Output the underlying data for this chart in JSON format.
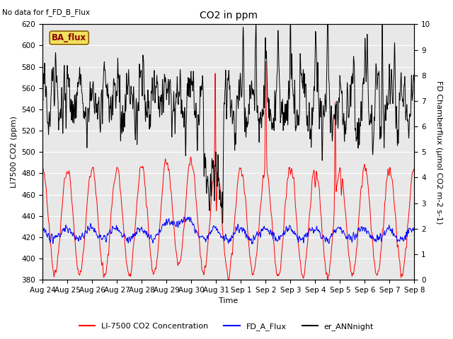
{
  "title": "CO2 in ppm",
  "no_data_text": "No data for f_FD_B_Flux",
  "ba_flux_label": "BA_flux",
  "ylabel_left": "LI7500 CO2 (ppm)",
  "ylabel_right": "FD Chamberflux (μmol CO2 m-2 s-1)",
  "xlabel": "Time",
  "ylim_left": [
    380,
    620
  ],
  "ylim_right": [
    0.0,
    10.0
  ],
  "legend_labels": [
    "LI-7500 CO2 Concentration",
    "FD_A_Flux",
    "er_ANNnight"
  ],
  "line_colors": [
    "red",
    "blue",
    "black"
  ],
  "bg_color": "#e8e8e8",
  "xtick_labels": [
    "Aug 24",
    "Aug 25",
    "Aug 26",
    "Aug 27",
    "Aug 28",
    "Aug 29",
    "Aug 30",
    "Aug 31",
    "Sep 1",
    "Sep 2",
    "Sep 3",
    "Sep 4",
    "Sep 5",
    "Sep 6",
    "Sep 7",
    "Sep 8"
  ],
  "n_points": 2160,
  "seed": 7
}
